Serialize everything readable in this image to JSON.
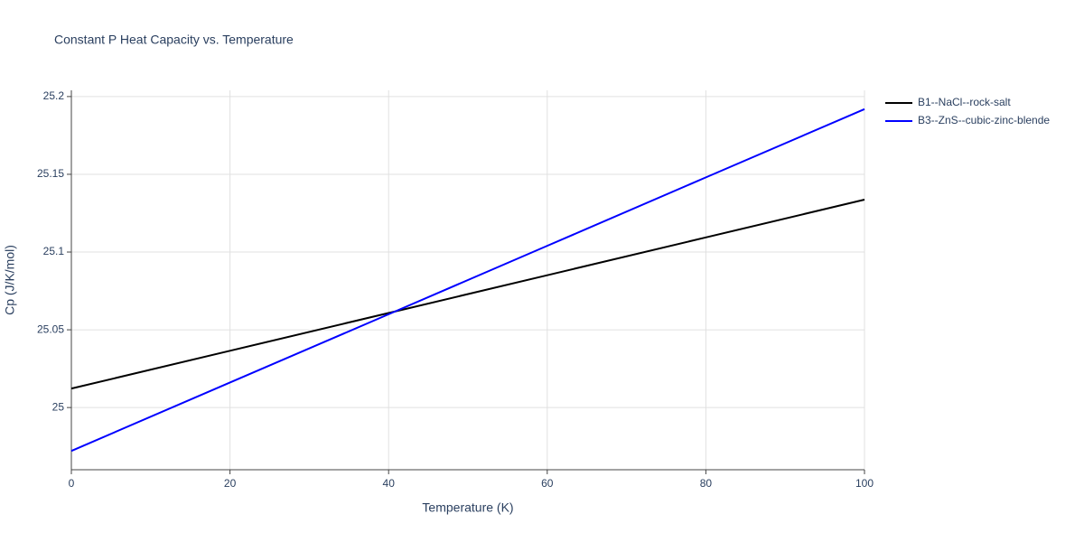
{
  "chart_data": {
    "type": "line",
    "title": "Constant P Heat Capacity vs. Temperature",
    "x_label": "Temperature (K)",
    "y_label": "Cp (J/K/mol)",
    "x": [
      0,
      20,
      40,
      60,
      80,
      100
    ],
    "series": [
      {
        "name": "B1--NaCl--rock-salt",
        "color": "#000000",
        "values": [
          25.0122,
          25.0365,
          25.0608,
          25.0851,
          25.1094,
          25.1337
        ]
      },
      {
        "name": "B3--ZnS--cubic-zinc-blende",
        "color": "#0000ff",
        "values": [
          24.9721,
          25.0161,
          25.06,
          25.104,
          25.148,
          25.1919
        ]
      }
    ],
    "xlim": [
      0,
      100
    ],
    "xticks": [
      0,
      20,
      40,
      60,
      80,
      100
    ],
    "ylim": [
      24.96,
      25.204
    ],
    "yticks": [
      25,
      25.05,
      25.1,
      25.15,
      25.2
    ],
    "grid": true,
    "legend": "right"
  }
}
